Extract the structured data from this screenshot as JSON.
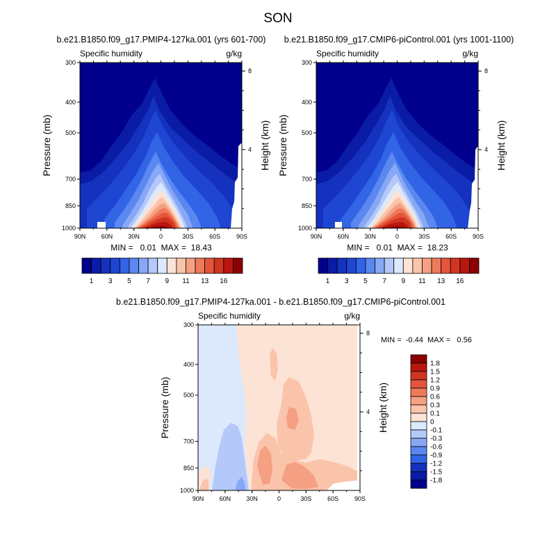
{
  "page": {
    "title": "SON"
  },
  "panel_top_left": {
    "title": "b.e21.B1850.f09_g17.PMIP4-127ka.001 (yrs 601-700)",
    "var_label": "Specific humidity",
    "unit_label": "g/kg",
    "ylabel": "Pressure (mb)",
    "ylabel_right": "Height (km)",
    "stats": "MIN =   0.01  MAX =  18.43"
  },
  "panel_top_right": {
    "title": "b.e21.B1850.f09_g17.CMIP6-piControl.001 (yrs 1001-1100)",
    "var_label": "Specific humidity",
    "unit_label": "g/kg",
    "ylabel": "Pressure (mb)",
    "ylabel_right": "Height (km)",
    "stats": "MIN =   0.01  MAX =  18.23"
  },
  "panel_bottom": {
    "title": "b.e21.B1850.f09_g17.PMIP4-127ka.001 - b.e21.B1850.f09_g17.CMIP6-piControl.001",
    "var_label": "Specific humidity",
    "unit_label": "g/kg",
    "ylabel": "Pressure (mb)",
    "ylabel_right": "Height (km)",
    "stats": "MIN =  -0.44  MAX =   0.56"
  },
  "chart_data": [
    {
      "type": "heatmap",
      "title": "b.e21.B1850.f09_g17.PMIP4-127ka.001 (yrs 601-700)",
      "xlabel": "",
      "ylabel": "Pressure (mb)",
      "y2label": "Height (km)",
      "x_ticks": [
        "90N",
        "60N",
        "30N",
        "0",
        "30S",
        "60S",
        "90S"
      ],
      "y_ticks": [
        "300",
        "400",
        "500",
        "700",
        "850",
        "1000"
      ],
      "y2_ticks": [
        "8",
        "4"
      ],
      "ylim": [
        1000,
        300
      ],
      "min": 0.01,
      "max": 18.43,
      "colorbar_levels": [
        "1",
        "3",
        "5",
        "7",
        "9",
        "11",
        "13",
        "16"
      ],
      "colors": [
        "#00008c",
        "#0a1ba6",
        "#1432bd",
        "#1e46d2",
        "#3264e6",
        "#5a87f0",
        "#87a8f5",
        "#b4c8fa",
        "#dce8fc",
        "#fde3d5",
        "#fac4ab",
        "#f5a082",
        "#ee7a5a",
        "#e4553a",
        "#d13520",
        "#b8160e",
        "#8b0000"
      ]
    },
    {
      "type": "heatmap",
      "title": "b.e21.B1850.f09_g17.CMIP6-piControl.001 (yrs 1001-1100)",
      "xlabel": "",
      "ylabel": "Pressure (mb)",
      "y2label": "Height (km)",
      "x_ticks": [
        "90N",
        "60N",
        "30N",
        "0",
        "30S",
        "60S",
        "90S"
      ],
      "y_ticks": [
        "300",
        "400",
        "500",
        "700",
        "850",
        "1000"
      ],
      "y2_ticks": [
        "8",
        "4"
      ],
      "ylim": [
        1000,
        300
      ],
      "min": 0.01,
      "max": 18.23,
      "colorbar_levels": [
        "1",
        "3",
        "5",
        "7",
        "9",
        "11",
        "13",
        "16"
      ],
      "colors": [
        "#00008c",
        "#0a1ba6",
        "#1432bd",
        "#1e46d2",
        "#3264e6",
        "#5a87f0",
        "#87a8f5",
        "#b4c8fa",
        "#dce8fc",
        "#fde3d5",
        "#fac4ab",
        "#f5a082",
        "#ee7a5a",
        "#e4553a",
        "#d13520",
        "#b8160e",
        "#8b0000"
      ]
    },
    {
      "type": "heatmap",
      "title": "b.e21.B1850.f09_g17.PMIP4-127ka.001 - b.e21.B1850.f09_g17.CMIP6-piControl.001",
      "xlabel": "",
      "ylabel": "Pressure (mb)",
      "y2label": "Height (km)",
      "x_ticks": [
        "90N",
        "60N",
        "30N",
        "0",
        "30S",
        "60S",
        "90S"
      ],
      "y_ticks": [
        "300",
        "400",
        "500",
        "700",
        "850",
        "1000"
      ],
      "y2_ticks": [
        "8",
        "4"
      ],
      "ylim": [
        1000,
        300
      ],
      "min": -0.44,
      "max": 0.56,
      "colorbar_levels": [
        "1.8",
        "1.5",
        "1.2",
        "0.9",
        "0.6",
        "0.3",
        "0.1",
        "0",
        "-0.1",
        "-0.3",
        "-0.6",
        "-0.9",
        "-1.2",
        "-1.5",
        "-1.8"
      ],
      "colors": [
        "#8b0000",
        "#b8160e",
        "#d13520",
        "#e4553a",
        "#ee7a5a",
        "#f5a082",
        "#fac4ab",
        "#fde3d5",
        "#dce8fc",
        "#b4c8fa",
        "#87a8f5",
        "#5a87f0",
        "#3264e6",
        "#1432bd",
        "#0a1ba6",
        "#00008c"
      ]
    }
  ]
}
